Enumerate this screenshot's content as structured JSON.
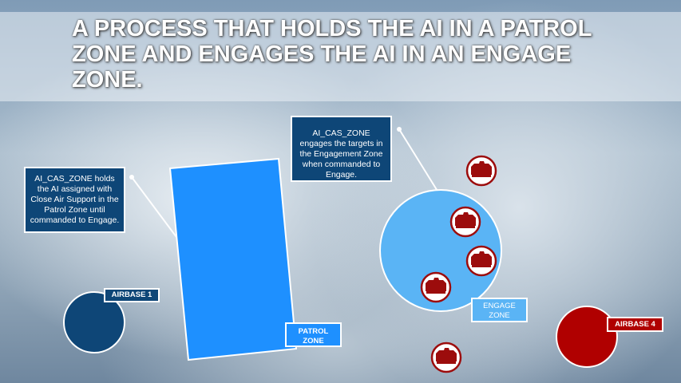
{
  "title": "A PROCESS THAT HOLDS THE AI IN A PATROL ZONE AND ENGAGES THE AI IN AN ENGAGE ZONE.",
  "callouts": {
    "patrol": "AI_CAS_ZONE holds the AI assigned with Close Air Support in the Patrol Zone until commanded to Engage.",
    "engage": "AI_CAS_ZONE engages the targets in the Engagement Zone when commanded to Engage."
  },
  "labels": {
    "airbase1": "AIRBASE 1",
    "airbase4": "AIRBASE 4",
    "patrol_zone": "PATROL ZONE",
    "engage_zone": "ENGAGE ZONE"
  },
  "colors": {
    "patrol_zone": "#1e90ff",
    "engage_zone": "#5ab4f5",
    "airbase_blue": "#0e4677",
    "airbase_red": "#b00000",
    "callout_bg": "#0e4677"
  },
  "icons": {
    "target": "tank-icon"
  }
}
